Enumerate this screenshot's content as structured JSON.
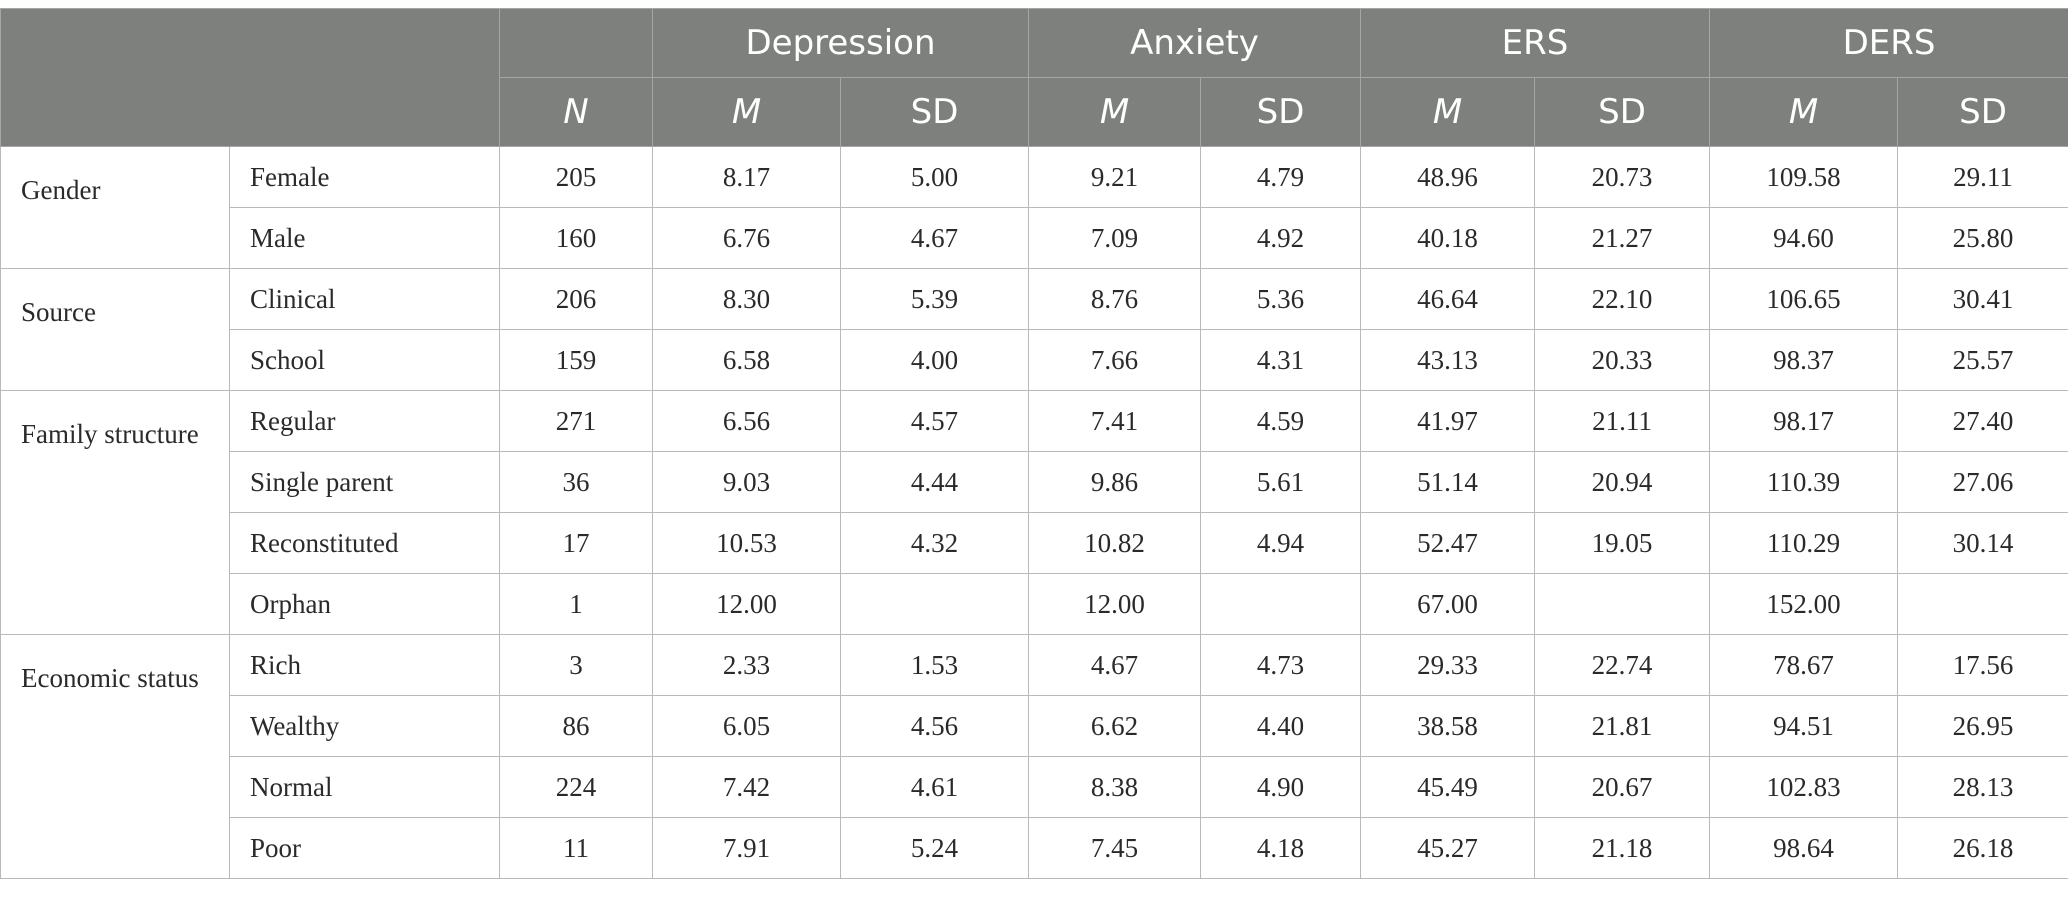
{
  "header": {
    "groups": [
      "Depression",
      "Anxiety",
      "ERS",
      "DERS"
    ],
    "n_label": "N",
    "m_label": "M",
    "sd_label": "SD"
  },
  "groups": [
    {
      "label": "Gender",
      "rows": [
        {
          "label": "Female",
          "cells": [
            "205",
            "8.17",
            "5.00",
            "9.21",
            "4.79",
            "48.96",
            "20.73",
            "109.58",
            "29.11"
          ]
        },
        {
          "label": "Male",
          "cells": [
            "160",
            "6.76",
            "4.67",
            "7.09",
            "4.92",
            "40.18",
            "21.27",
            "94.60",
            "25.80"
          ]
        }
      ]
    },
    {
      "label": "Source",
      "rows": [
        {
          "label": "Clinical",
          "cells": [
            "206",
            "8.30",
            "5.39",
            "8.76",
            "5.36",
            "46.64",
            "22.10",
            "106.65",
            "30.41"
          ]
        },
        {
          "label": "School",
          "cells": [
            "159",
            "6.58",
            "4.00",
            "7.66",
            "4.31",
            "43.13",
            "20.33",
            "98.37",
            "25.57"
          ]
        }
      ]
    },
    {
      "label": "Family structure",
      "rows": [
        {
          "label": "Regular",
          "cells": [
            "271",
            "6.56",
            "4.57",
            "7.41",
            "4.59",
            "41.97",
            "21.11",
            "98.17",
            "27.40"
          ]
        },
        {
          "label": "Single parent",
          "cells": [
            "36",
            "9.03",
            "4.44",
            "9.86",
            "5.61",
            "51.14",
            "20.94",
            "110.39",
            "27.06"
          ]
        },
        {
          "label": "Reconstituted",
          "cells": [
            "17",
            "10.53",
            "4.32",
            "10.82",
            "4.94",
            "52.47",
            "19.05",
            "110.29",
            "30.14"
          ]
        },
        {
          "label": "Orphan",
          "cells": [
            "1",
            "12.00",
            "",
            "12.00",
            "",
            "67.00",
            "",
            "152.00",
            ""
          ]
        }
      ]
    },
    {
      "label": "Economic status",
      "rows": [
        {
          "label": "Rich",
          "cells": [
            "3",
            "2.33",
            "1.53",
            "4.67",
            "4.73",
            "29.33",
            "22.74",
            "78.67",
            "17.56"
          ]
        },
        {
          "label": "Wealthy",
          "cells": [
            "86",
            "6.05",
            "4.56",
            "6.62",
            "4.40",
            "38.58",
            "21.81",
            "94.51",
            "26.95"
          ]
        },
        {
          "label": "Normal",
          "cells": [
            "224",
            "7.42",
            "4.61",
            "8.38",
            "4.90",
            "45.49",
            "20.67",
            "102.83",
            "28.13"
          ]
        },
        {
          "label": "Poor",
          "cells": [
            "11",
            "7.91",
            "5.24",
            "7.45",
            "4.18",
            "45.27",
            "21.18",
            "98.64",
            "26.18"
          ]
        }
      ]
    }
  ]
}
